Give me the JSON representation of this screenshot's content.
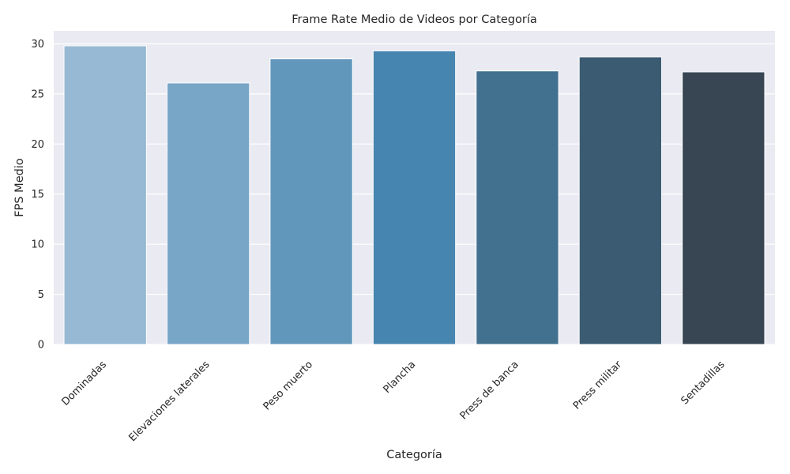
{
  "chart_data": {
    "type": "bar",
    "title": "Frame Rate Medio de Videos por Categoría",
    "xlabel": "Categoría",
    "ylabel": "FPS Medio",
    "categories": [
      "Dominadas",
      "Elevaciones laterales",
      "Peso muerto",
      "Plancha",
      "Press de banca",
      "Press militar",
      "Sentadillas"
    ],
    "values": [
      29.8,
      26.1,
      28.5,
      29.3,
      27.3,
      28.7,
      27.2
    ],
    "colors": [
      "#97b9d3",
      "#78a6c7",
      "#6297bc",
      "#4785b1",
      "#42708f",
      "#3b5b73",
      "#374652"
    ],
    "ylim": [
      0,
      31.3
    ],
    "yticks": [
      0,
      5,
      10,
      15,
      20,
      25,
      30
    ],
    "grid": true,
    "plot_background": "#eaeaf2",
    "grid_color": "#ffffff"
  }
}
